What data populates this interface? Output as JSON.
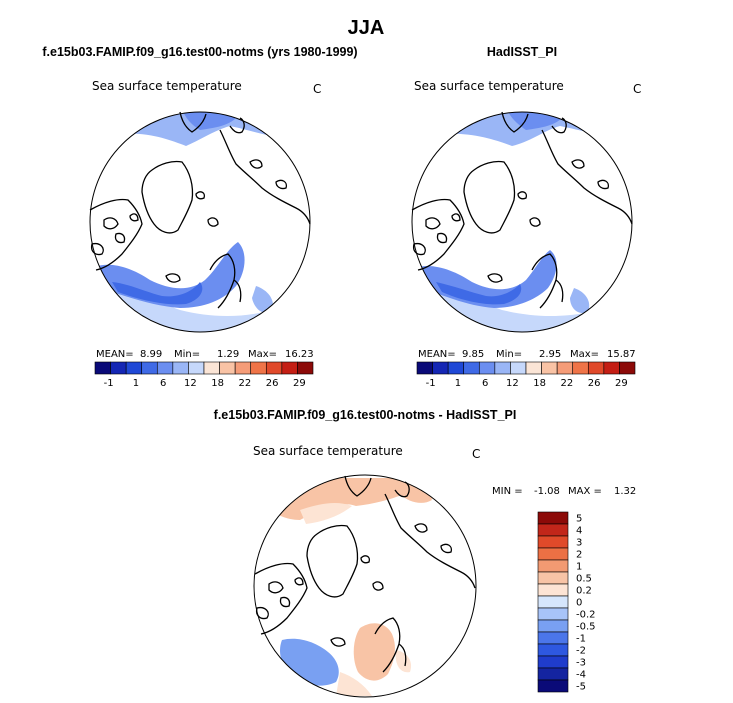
{
  "figure": {
    "title": "JJA",
    "panel_left": {
      "title": "f.e15b03.FAMIP.f09_g16.test00-notms (yrs 1980-1999)",
      "variable": "Sea surface temperature",
      "units": "C",
      "stats": {
        "mean_label": "MEAN=",
        "mean": "8.99",
        "min_label": "Min=",
        "min": "1.29",
        "max_label": "Max=",
        "max": "16.23"
      }
    },
    "panel_right": {
      "title": "HadISST_PI",
      "variable": "Sea surface temperature",
      "units": "C",
      "stats": {
        "mean_label": "MEAN=",
        "mean": "9.85",
        "min_label": "Min=",
        "min": "2.95",
        "max_label": "Max=",
        "max": "15.87"
      }
    },
    "panel_diff": {
      "title": "f.e15b03.FAMIP.f09_g16.test00-notms - HadISST_PI",
      "variable": "Sea surface temperature",
      "units": "C",
      "stats": {
        "min_label": "MIN =",
        "min": "-1.08",
        "max_label": "MAX =",
        "max": "1.32"
      }
    }
  },
  "colorbar_abs": {
    "colors": [
      "#0a0a78",
      "#1426b4",
      "#1f48d6",
      "#3f6ae6",
      "#6b8ef0",
      "#9ab6f6",
      "#c6d8fb",
      "#fbe5d6",
      "#f9c3a5",
      "#f59c78",
      "#ef7448",
      "#e0492a",
      "#c41e14",
      "#8c0a08"
    ],
    "ticks": [
      "-1",
      "1",
      "6",
      "12",
      "18",
      "22",
      "26",
      "29"
    ]
  },
  "colorbar_diff": {
    "colors": [
      "#0a0a78",
      "#1424a0",
      "#1f3ccc",
      "#2e58e0",
      "#4b76ea",
      "#79a0f2",
      "#a8c4f8",
      "#d6e6fc",
      "#fde4d4",
      "#f8c4a6",
      "#f29a72",
      "#ec7044",
      "#e04a2a",
      "#c2261a",
      "#8c0a08"
    ],
    "labels": [
      "5",
      "4",
      "3",
      "2",
      "1",
      "0.5",
      "0.2",
      "0",
      "-0.2",
      "-0.5",
      "-1",
      "-2",
      "-3",
      "-4",
      "-5"
    ]
  },
  "field_colors": {
    "blue_light": "#c6d8fb",
    "blue_mid": "#9ab6f6",
    "blue_main": "#6b8ef0",
    "blue_deep": "#3f6ae6",
    "cream": "#fbe5d6",
    "diff_red_light": "#f8c4a6",
    "diff_red_pale": "#fde4d4",
    "diff_blue": "#79a0f2",
    "diff_blue_light": "#a8c4f8"
  }
}
